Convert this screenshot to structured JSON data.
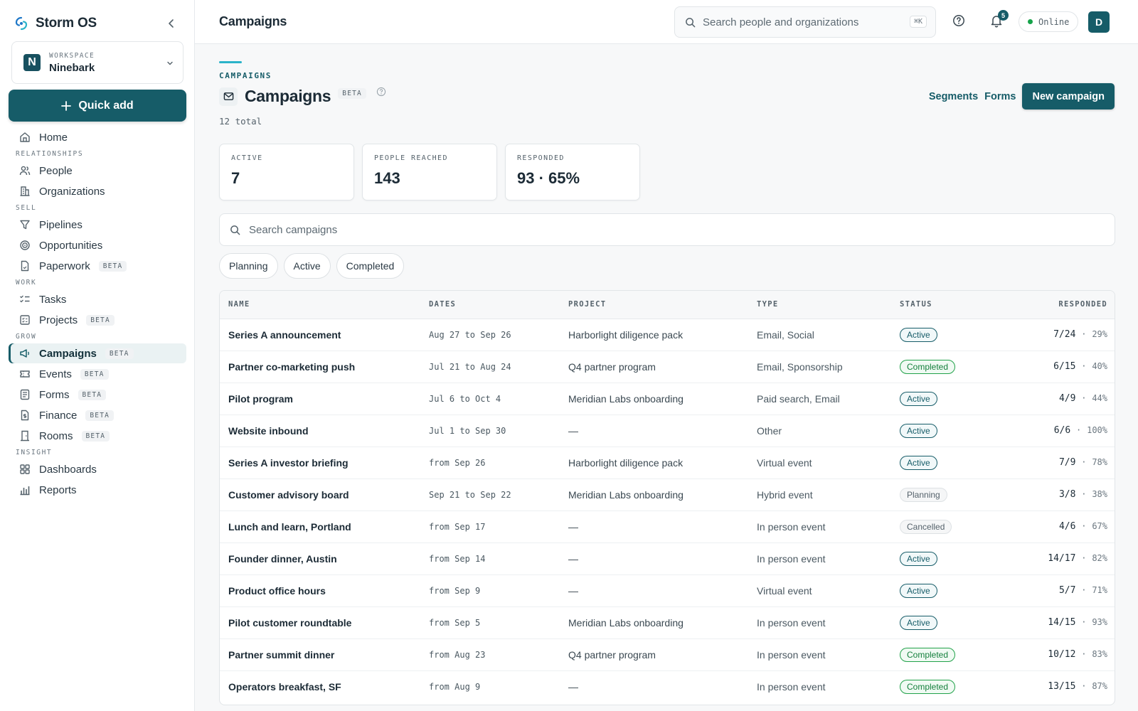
{
  "app": {
    "name": "Storm OS",
    "brand_color": "#165c68"
  },
  "workspace": {
    "label": "WORKSPACE",
    "name": "Ninebark",
    "initial": "N"
  },
  "quick_add": "Quick add",
  "nav": {
    "home": "Home",
    "sections": {
      "relationships": "RELATIONSHIPS",
      "sell": "SELL",
      "work": "WORK",
      "grow": "GROW",
      "insight": "INSIGHT"
    },
    "people": "People",
    "organizations": "Organizations",
    "pipelines": "Pipelines",
    "opportunities": "Opportunities",
    "paperwork": "Paperwork",
    "tasks": "Tasks",
    "projects": "Projects",
    "campaigns": "Campaigns",
    "events": "Events",
    "forms": "Forms",
    "finance": "Finance",
    "rooms": "Rooms",
    "dashboards": "Dashboards",
    "reports": "Reports",
    "beta": "BETA"
  },
  "topbar": {
    "title": "Campaigns",
    "search_placeholder": "Search people and organizations",
    "shortcut": "⌘K",
    "notifications": "5",
    "status": "Online",
    "avatar": "D"
  },
  "page": {
    "eyebrow": "CAMPAIGNS",
    "title": "Campaigns",
    "beta": "BETA",
    "total": "12 total",
    "segments": "Segments",
    "forms": "Forms",
    "new_campaign": "New campaign"
  },
  "stats": {
    "active_label": "ACTIVE",
    "active_value": "7",
    "reached_label": "PEOPLE REACHED",
    "reached_value": "143",
    "responded_label": "RESPONDED",
    "responded_value": "93 · 65%"
  },
  "search_campaigns_placeholder": "Search campaigns",
  "filters": [
    "Planning",
    "Active",
    "Completed"
  ],
  "table": {
    "headers": {
      "name": "NAME",
      "dates": "DATES",
      "project": "PROJECT",
      "type": "TYPE",
      "status": "STATUS",
      "responded": "RESPONDED"
    },
    "rows": [
      {
        "name": "Series A announcement",
        "dates": "Aug 27 to Sep 26",
        "project": "Harborlight diligence pack",
        "type": "Email, Social",
        "status": "Active",
        "resp": "7/24",
        "pct": "29%"
      },
      {
        "name": "Partner co-marketing push",
        "dates": "Jul 21 to Aug 24",
        "project": "Q4 partner program",
        "type": "Email, Sponsorship",
        "status": "Completed",
        "resp": "6/15",
        "pct": "40%"
      },
      {
        "name": "Pilot program",
        "dates": "Jul 6 to Oct 4",
        "project": "Meridian Labs onboarding",
        "type": "Paid search, Email",
        "status": "Active",
        "resp": "4/9",
        "pct": "44%"
      },
      {
        "name": "Website inbound",
        "dates": "Jul 1 to Sep 30",
        "project": "—",
        "type": "Other",
        "status": "Active",
        "resp": "6/6",
        "pct": "100%"
      },
      {
        "name": "Series A investor briefing",
        "dates": "from Sep 26",
        "project": "Harborlight diligence pack",
        "type": "Virtual event",
        "status": "Active",
        "resp": "7/9",
        "pct": "78%"
      },
      {
        "name": "Customer advisory board",
        "dates": "Sep 21 to Sep 22",
        "project": "Meridian Labs onboarding",
        "type": "Hybrid event",
        "status": "Planning",
        "resp": "3/8",
        "pct": "38%"
      },
      {
        "name": "Lunch and learn, Portland",
        "dates": "from Sep 17",
        "project": "—",
        "type": "In person event",
        "status": "Cancelled",
        "resp": "4/6",
        "pct": "67%"
      },
      {
        "name": "Founder dinner, Austin",
        "dates": "from Sep 14",
        "project": "—",
        "type": "In person event",
        "status": "Active",
        "resp": "14/17",
        "pct": "82%"
      },
      {
        "name": "Product office hours",
        "dates": "from Sep 9",
        "project": "—",
        "type": "Virtual event",
        "status": "Active",
        "resp": "5/7",
        "pct": "71%"
      },
      {
        "name": "Pilot customer roundtable",
        "dates": "from Sep 5",
        "project": "Meridian Labs onboarding",
        "type": "In person event",
        "status": "Active",
        "resp": "14/15",
        "pct": "93%"
      },
      {
        "name": "Partner summit dinner",
        "dates": "from Aug 23",
        "project": "Q4 partner program",
        "type": "In person event",
        "status": "Completed",
        "resp": "10/12",
        "pct": "83%"
      },
      {
        "name": "Operators breakfast, SF",
        "dates": "from Aug 9",
        "project": "—",
        "type": "In person event",
        "status": "Completed",
        "resp": "13/15",
        "pct": "87%"
      }
    ]
  }
}
